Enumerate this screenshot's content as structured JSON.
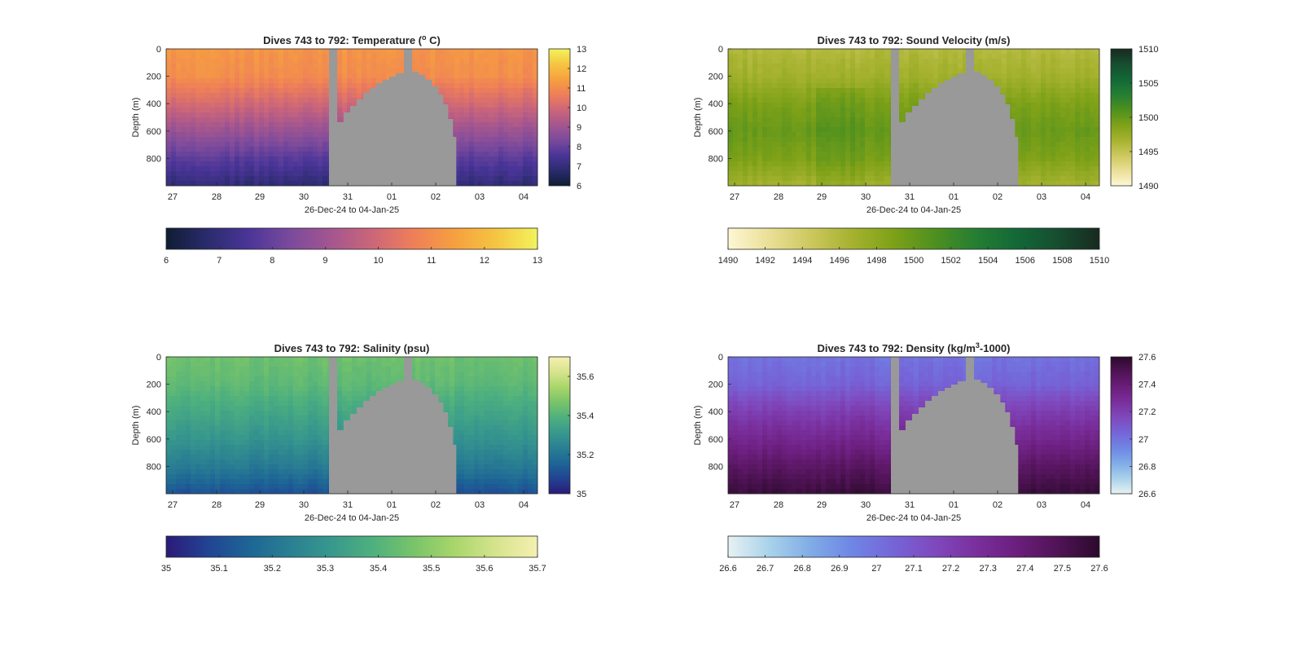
{
  "figure": {
    "panels": [
      {
        "key": "temperature",
        "title_main": "Dives 743 to 792: Temperature (",
        "title_sup": "o",
        "title_tail": " C)",
        "ylabel": "Depth (m)",
        "xlabel": "26-Dec-24 to 04-Jan-25",
        "x_ticks": [
          "27",
          "28",
          "29",
          "30",
          "31",
          "01",
          "02",
          "03",
          "04"
        ],
        "y_ticks": [
          "0",
          "200",
          "400",
          "600",
          "800"
        ],
        "side_colorbar_ticks": [
          "13",
          "12",
          "11",
          "10",
          "9",
          "8",
          "7",
          "6"
        ],
        "bottom_colorbar_ticks": [
          "6",
          "7",
          "8",
          "9",
          "10",
          "11",
          "12",
          "13"
        ],
        "colormap": [
          "#0f1d33",
          "#2a2b6d",
          "#4a3598",
          "#7a4a9c",
          "#a4568f",
          "#cc6679",
          "#ef7f58",
          "#f6a03f",
          "#f5c542",
          "#f2f35c"
        ]
      },
      {
        "key": "sound_velocity",
        "title_main": "Dives 743 to 792: Sound Velocity (m/s)",
        "title_sup": "",
        "title_tail": "",
        "ylabel": "Depth (m)",
        "xlabel": "26-Dec-24 to 04-Jan-25",
        "x_ticks": [
          "27",
          "28",
          "29",
          "30",
          "31",
          "01",
          "02",
          "03",
          "04"
        ],
        "y_ticks": [
          "0",
          "200",
          "400",
          "600",
          "800"
        ],
        "side_colorbar_ticks": [
          "1510",
          "1505",
          "1500",
          "1495",
          "1490"
        ],
        "bottom_colorbar_ticks": [
          "1490",
          "1492",
          "1494",
          "1496",
          "1498",
          "1500",
          "1502",
          "1504",
          "1506",
          "1508",
          "1510"
        ],
        "colormap": [
          "#fdf7d5",
          "#eadf96",
          "#ccc85d",
          "#a6b22f",
          "#7ea118",
          "#4e901f",
          "#247e33",
          "#136837",
          "#164d30",
          "#172a1f"
        ]
      },
      {
        "key": "salinity",
        "title_main": "Dives 743 to 792: Salinity (psu)",
        "title_sup": "",
        "title_tail": "",
        "ylabel": "Depth (m)",
        "xlabel": "26-Dec-24 to 04-Jan-25",
        "x_ticks": [
          "27",
          "28",
          "29",
          "30",
          "31",
          "01",
          "02",
          "03",
          "04"
        ],
        "y_ticks": [
          "0",
          "200",
          "400",
          "600",
          "800"
        ],
        "side_colorbar_ticks": [
          "35.6",
          "35.4",
          "35.2",
          "35"
        ],
        "bottom_colorbar_ticks": [
          "35",
          "35.1",
          "35.2",
          "35.3",
          "35.4",
          "35.5",
          "35.6",
          "35.7"
        ],
        "colormap": [
          "#2b1a78",
          "#224393",
          "#1d6596",
          "#2a7f92",
          "#37988d",
          "#4eb07e",
          "#78c469",
          "#a9d66b",
          "#d6e48d",
          "#f5f0b0"
        ]
      },
      {
        "key": "density",
        "title_main": "Dives 743 to 792: Density (kg/m",
        "title_sup": "3",
        "title_tail": "-1000)",
        "ylabel": "Depth (m)",
        "xlabel": "26-Dec-24 to 04-Jan-25",
        "x_ticks": [
          "27",
          "28",
          "29",
          "30",
          "31",
          "01",
          "02",
          "03",
          "04"
        ],
        "y_ticks": [
          "0",
          "200",
          "400",
          "600",
          "800"
        ],
        "side_colorbar_ticks": [
          "27.6",
          "27.4",
          "27.2",
          "27",
          "26.8",
          "26.6"
        ],
        "bottom_colorbar_ticks": [
          "26.6",
          "26.7",
          "26.8",
          "26.9",
          "27",
          "27.1",
          "27.2",
          "27.3",
          "27.4",
          "27.5",
          "27.6"
        ],
        "colormap": [
          "#e7f2f4",
          "#a9d2ea",
          "#80ace7",
          "#6f86e5",
          "#7565d8",
          "#7f49bd",
          "#7a2f9e",
          "#6b1e7c",
          "#501356",
          "#2b0a2c"
        ]
      }
    ],
    "mask_color": "#999999"
  },
  "chart_data": [
    {
      "type": "heatmap",
      "title": "Dives 743 to 792: Temperature (o C)",
      "xlabel": "26-Dec-24 to 04-Jan-25",
      "ylabel": "Depth (m)",
      "x_tick_labels": [
        "27",
        "28",
        "29",
        "30",
        "31",
        "01",
        "02",
        "03",
        "04"
      ],
      "y_tick_labels": [
        "0",
        "200",
        "400",
        "600",
        "800"
      ],
      "ylim": [
        1000,
        0
      ],
      "y_reversed": true,
      "clim": [
        6,
        13
      ],
      "colorbar_ticks": [
        6,
        7,
        8,
        9,
        10,
        11,
        12,
        13
      ],
      "depth_levels": [
        0,
        200,
        400,
        600,
        800,
        980
      ],
      "profile_values": [
        11.2,
        11.0,
        10.0,
        8.9,
        7.8,
        7.0
      ],
      "data_gap": "grey region from ~30.6 Dec to ~02.5 Jan, ~01.3 Jan reaching surface"
    },
    {
      "type": "heatmap",
      "title": "Dives 743 to 792: Sound Velocity (m/s)",
      "xlabel": "26-Dec-24 to 04-Jan-25",
      "ylabel": "Depth (m)",
      "x_tick_labels": [
        "27",
        "28",
        "29",
        "30",
        "31",
        "01",
        "02",
        "03",
        "04"
      ],
      "y_tick_labels": [
        "0",
        "200",
        "400",
        "600",
        "800"
      ],
      "ylim": [
        1000,
        0
      ],
      "y_reversed": true,
      "clim": [
        1490,
        1510
      ],
      "colorbar_ticks": [
        1490,
        1492,
        1494,
        1496,
        1498,
        1500,
        1502,
        1504,
        1506,
        1508,
        1510
      ],
      "depth_levels": [
        0,
        200,
        400,
        600,
        800,
        980
      ],
      "profile_values": [
        1496,
        1497,
        1499,
        1500,
        1499,
        1497
      ]
    },
    {
      "type": "heatmap",
      "title": "Dives 743 to 792: Salinity (psu)",
      "xlabel": "26-Dec-24 to 04-Jan-25",
      "ylabel": "Depth (m)",
      "x_tick_labels": [
        "27",
        "28",
        "29",
        "30",
        "31",
        "01",
        "02",
        "03",
        "04"
      ],
      "y_tick_labels": [
        "0",
        "200",
        "400",
        "600",
        "800"
      ],
      "ylim": [
        1000,
        0
      ],
      "y_reversed": true,
      "clim": [
        35,
        35.7
      ],
      "colorbar_ticks": [
        35,
        35.1,
        35.2,
        35.3,
        35.4,
        35.5,
        35.6,
        35.7
      ],
      "depth_levels": [
        0,
        200,
        400,
        600,
        800,
        980
      ],
      "profile_values": [
        35.45,
        35.42,
        35.36,
        35.3,
        35.22,
        35.12
      ]
    },
    {
      "type": "heatmap",
      "title": "Dives 743 to 792: Density (kg/m3-1000)",
      "xlabel": "26-Dec-24 to 04-Jan-25",
      "ylabel": "Depth (m)",
      "x_tick_labels": [
        "27",
        "28",
        "29",
        "30",
        "31",
        "01",
        "02",
        "03",
        "04"
      ],
      "y_tick_labels": [
        "0",
        "200",
        "400",
        "600",
        "800"
      ],
      "ylim": [
        1000,
        0
      ],
      "y_reversed": true,
      "clim": [
        26.6,
        27.6
      ],
      "colorbar_ticks": [
        26.6,
        26.7,
        26.8,
        26.9,
        27,
        27.1,
        27.2,
        27.3,
        27.4,
        27.5,
        27.6
      ],
      "depth_levels": [
        0,
        200,
        400,
        600,
        800,
        980
      ],
      "profile_values": [
        27.0,
        27.05,
        27.2,
        27.32,
        27.45,
        27.55
      ]
    }
  ]
}
